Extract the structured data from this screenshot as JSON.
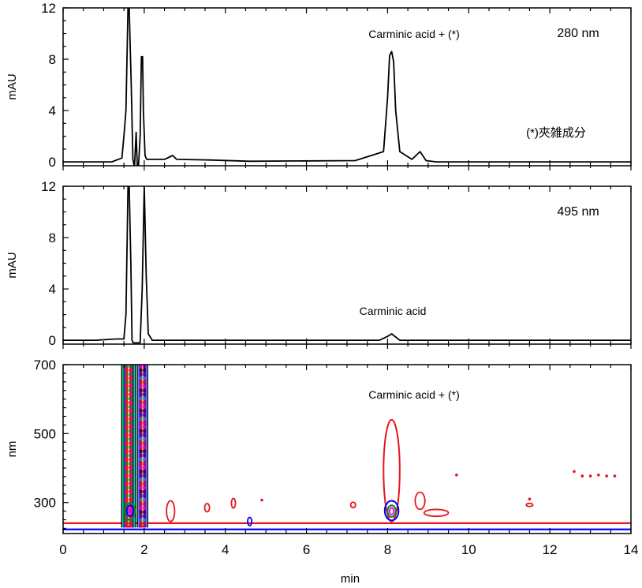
{
  "figure": {
    "x_axis": {
      "label": "min",
      "range": [
        0,
        14
      ],
      "ticks": [
        0,
        2,
        4,
        6,
        8,
        10,
        12,
        14
      ],
      "tick_labels": [
        "0",
        "2",
        "4",
        "6",
        "8",
        "10",
        "12",
        "14"
      ]
    }
  },
  "chart_data": [
    {
      "type": "line",
      "panel": "top",
      "wavelength_label": "280 nm",
      "ylabel": "mAU",
      "xlim": [
        0,
        14
      ],
      "ylim": [
        -0.3,
        12
      ],
      "yticks": [
        0,
        4,
        8,
        12
      ],
      "ytick_labels": [
        "0",
        "4",
        "8",
        "12"
      ],
      "annotations": [
        "Carminic acid + (*)",
        "(*)夾雑成分"
      ],
      "series": [
        {
          "color": "#000000",
          "x": [
            0,
            1.2,
            1.45,
            1.5,
            1.55,
            1.6,
            1.63,
            1.68,
            1.72,
            1.76,
            1.8,
            1.83,
            1.86,
            1.9,
            1.93,
            1.96,
            1.98,
            2.02,
            2.06,
            2.1,
            2.5,
            2.7,
            2.8,
            3.6,
            4.6,
            7.2,
            7.9,
            8.0,
            8.05,
            8.1,
            8.15,
            8.2,
            8.3,
            8.6,
            8.8,
            8.95,
            9.2,
            14
          ],
          "y": [
            0,
            0,
            0.3,
            2,
            4,
            12,
            12,
            6,
            0.2,
            -0.4,
            2.3,
            -0.4,
            -0.2,
            2,
            8.2,
            8.2,
            4,
            0.5,
            0.2,
            0.2,
            0.2,
            0.5,
            0.2,
            0.15,
            0.05,
            0.1,
            0.8,
            5,
            8.3,
            8.6,
            7.8,
            4,
            0.8,
            0.2,
            0.8,
            0.1,
            0,
            0
          ]
        }
      ]
    },
    {
      "type": "line",
      "panel": "middle",
      "wavelength_label": "495 nm",
      "ylabel": "mAU",
      "xlim": [
        0,
        14
      ],
      "ylim": [
        -0.3,
        12
      ],
      "yticks": [
        0,
        4,
        8,
        12
      ],
      "ytick_labels": [
        "0",
        "4",
        "8",
        "12"
      ],
      "annotations": [
        "Carminic acid"
      ],
      "series": [
        {
          "color": "#000000",
          "x": [
            0,
            0.8,
            1.3,
            1.5,
            1.55,
            1.6,
            1.63,
            1.67,
            1.7,
            1.73,
            1.9,
            1.95,
            2.0,
            2.05,
            2.1,
            2.2,
            7.8,
            8.0,
            8.1,
            8.3,
            14
          ],
          "y": [
            0,
            0,
            0.1,
            0.1,
            2,
            12,
            12,
            6,
            0,
            -0.2,
            -0.2,
            4,
            12,
            5,
            0.5,
            0,
            0,
            0.3,
            0.5,
            0,
            0
          ]
        }
      ]
    },
    {
      "type": "heatmap",
      "panel": "bottom",
      "ylabel": "nm",
      "xlabel": "min",
      "xlim": [
        0,
        14
      ],
      "ylim": [
        210,
        700
      ],
      "yticks": [
        300,
        500,
        700
      ],
      "ytick_labels": [
        "300",
        "500",
        "700"
      ],
      "annotations": [
        "Carminic acid + (*)"
      ],
      "contour_colors": [
        "#e8141c",
        "#0000ff",
        "#00c8c8",
        "#009000",
        "#ff00ff",
        "#000000"
      ],
      "baseline_nm": [
        240,
        222
      ],
      "features": [
        {
          "kind": "band",
          "x": [
            1.45,
            1.78
          ],
          "nm": [
            230,
            700
          ],
          "colors": [
            "#000000",
            "#00c8c8",
            "#009000",
            "#0000ff",
            "#ff00ff",
            "#e8141c"
          ]
        },
        {
          "kind": "band",
          "x": [
            1.84,
            2.08
          ],
          "nm": [
            230,
            700
          ],
          "colors": [
            "#000000",
            "#00c8c8",
            "#ff00ff",
            "#0000ff",
            "#e8141c"
          ]
        },
        {
          "kind": "peak",
          "x": 8.1,
          "nm": 275,
          "rings": [
            {
              "color": "#e8141c",
              "rx": 0.2,
              "ry": [
                245,
                540
              ]
            },
            {
              "color": "#0000ff",
              "rx": 0.17,
              "ry": [
                248,
                305
              ]
            },
            {
              "color": "#009000",
              "rx": 0.1,
              "ry": [
                258,
                292
              ]
            },
            {
              "color": "#ff00ff",
              "rx": 0.05,
              "ry": [
                265,
                285
              ]
            }
          ]
        },
        {
          "kind": "peak",
          "x": 1.65,
          "nm": 275,
          "rings": [
            {
              "color": "#009000",
              "rx": 0.12,
              "ry": [
                250,
                300
              ]
            },
            {
              "color": "#0000ff",
              "rx": 0.08,
              "ry": [
                260,
                292
              ]
            },
            {
              "color": "#ff00ff",
              "rx": 0.04,
              "ry": [
                268,
                284
              ]
            }
          ]
        },
        {
          "kind": "dot",
          "x": 9.7,
          "nm": 380,
          "color": "#e8141c"
        },
        {
          "kind": "dot",
          "x": 12.6,
          "nm": 390,
          "color": "#e8141c"
        },
        {
          "kind": "dot",
          "x": 12.8,
          "nm": 377,
          "color": "#e8141c"
        },
        {
          "kind": "dot",
          "x": 13.0,
          "nm": 377,
          "color": "#e8141c"
        },
        {
          "kind": "dot",
          "x": 13.2,
          "nm": 380,
          "color": "#e8141c"
        },
        {
          "kind": "dot",
          "x": 13.4,
          "nm": 377,
          "color": "#e8141c"
        },
        {
          "kind": "dot",
          "x": 13.6,
          "nm": 377,
          "color": "#e8141c"
        },
        {
          "kind": "dot",
          "x": 11.5,
          "nm": 310,
          "color": "#e8141c"
        },
        {
          "kind": "dot",
          "x": 4.9,
          "nm": 307,
          "color": "#e8141c"
        },
        {
          "kind": "loop",
          "x": 7.15,
          "nm": 293,
          "rx": 0.06,
          "rn": 8,
          "color": "#e8141c"
        },
        {
          "kind": "loop",
          "x": 3.55,
          "nm": 285,
          "rx": 0.06,
          "rn": 12,
          "color": "#e8141c"
        },
        {
          "kind": "loop",
          "x": 4.2,
          "nm": 298,
          "rx": 0.05,
          "rn": 14,
          "color": "#e8141c"
        },
        {
          "kind": "loop",
          "x": 2.65,
          "nm": 275,
          "rx": 0.1,
          "rn": 30,
          "color": "#e8141c"
        },
        {
          "kind": "loop",
          "x": 11.5,
          "nm": 293,
          "rx": 0.08,
          "rn": 4,
          "color": "#e8141c"
        },
        {
          "kind": "loop",
          "x": 4.6,
          "nm": 245,
          "rx": 0.05,
          "rn": 12,
          "color": "#0000ff"
        },
        {
          "kind": "loop",
          "x": 8.8,
          "nm": 305,
          "rx": 0.12,
          "rn": 25,
          "color": "#e8141c"
        },
        {
          "kind": "loop",
          "x": 9.2,
          "nm": 270,
          "rx": 0.3,
          "rn": 10,
          "color": "#e8141c"
        }
      ]
    }
  ]
}
